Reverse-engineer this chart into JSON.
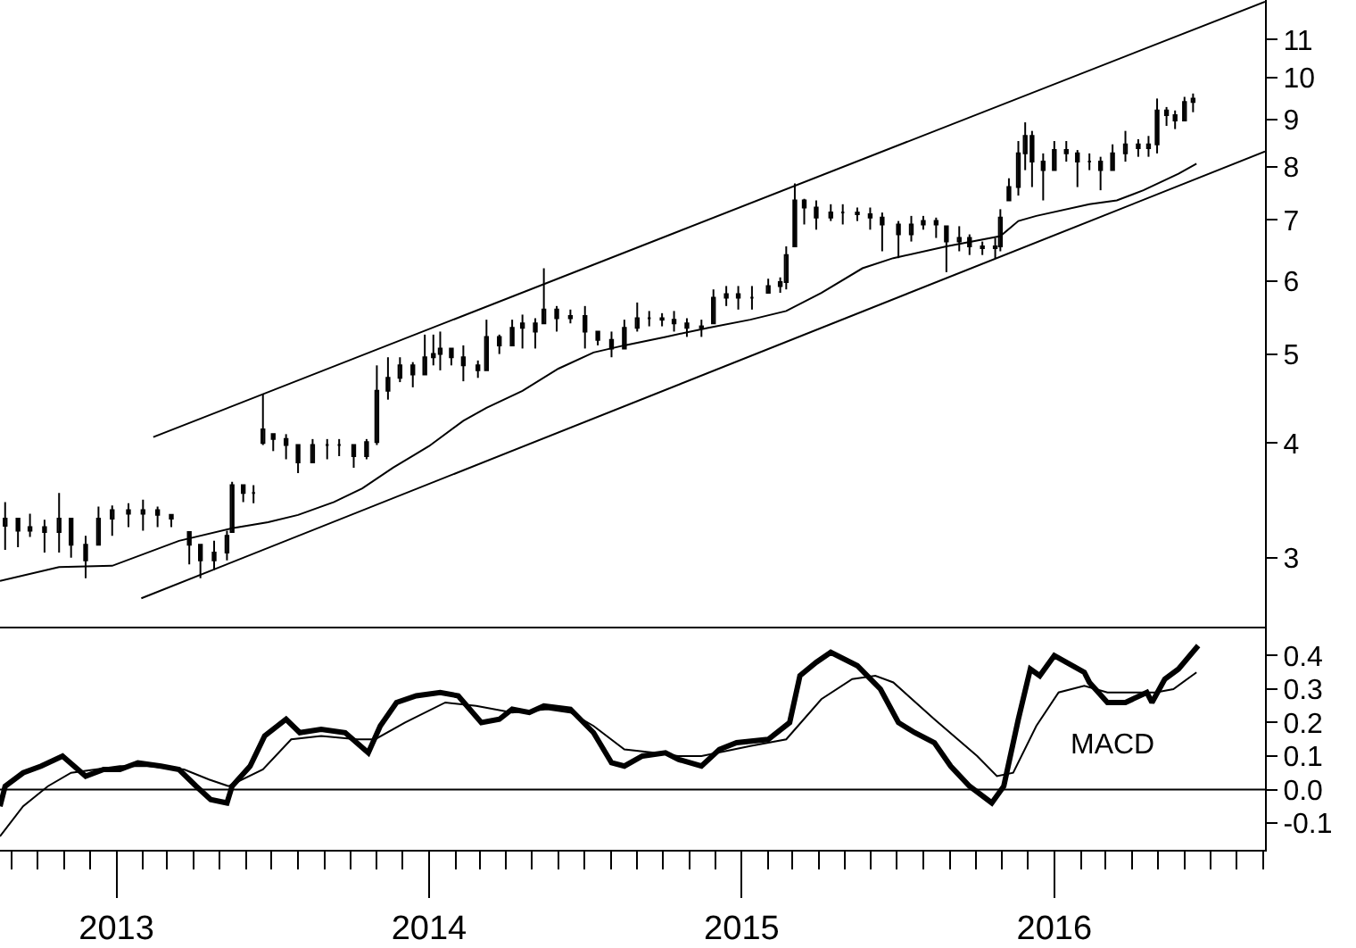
{
  "chart_data": [
    {
      "type": "candlestick",
      "color": "#000000",
      "log": "y",
      "tick_labels": "y",
      "xlim": [
        "2012-08-18",
        "2016-09-03"
      ],
      "ylim": [
        2.51,
        12.15
      ],
      "yticks": [
        3,
        4,
        5,
        6,
        7,
        8,
        9,
        10,
        11
      ],
      "x": [
        "2012-08-24",
        "2012-09-08",
        "2012-09-22",
        "2012-10-09",
        "2012-10-26",
        "2012-11-09",
        "2012-11-26",
        "2012-12-11",
        "2012-12-27",
        "2013-01-15",
        "2013-02-01",
        "2013-02-18",
        "2013-03-06",
        "2013-03-27",
        "2013-04-09",
        "2013-04-25",
        "2013-05-10",
        "2013-05-16",
        "2013-05-29",
        "2013-06-10",
        "2013-06-21",
        "2013-07-03",
        "2013-07-18",
        "2013-08-01",
        "2013-08-18",
        "2013-09-04",
        "2013-09-18",
        "2013-10-05",
        "2013-10-20",
        "2013-11-01",
        "2013-11-14",
        "2013-11-28",
        "2013-12-13",
        "2013-12-27",
        "2014-01-06",
        "2014-01-14",
        "2014-01-27",
        "2014-02-10",
        "2014-02-27",
        "2014-03-09",
        "2014-03-24",
        "2014-04-08",
        "2014-04-20",
        "2014-05-05",
        "2014-05-15",
        "2014-05-30",
        "2014-06-15",
        "2014-07-02",
        "2014-07-17",
        "2014-08-02",
        "2014-08-17",
        "2014-09-01",
        "2014-09-15",
        "2014-09-30",
        "2014-10-14",
        "2014-10-29",
        "2014-11-15",
        "2014-11-29",
        "2014-12-14",
        "2014-12-28",
        "2015-01-13",
        "2015-02-01",
        "2015-02-15",
        "2015-02-22",
        "2015-03-04",
        "2015-03-15",
        "2015-03-29",
        "2015-04-15",
        "2015-04-29",
        "2015-05-16",
        "2015-05-31",
        "2015-06-14",
        "2015-07-03",
        "2015-07-18",
        "2015-08-01",
        "2015-08-16",
        "2015-08-28",
        "2015-09-12",
        "2015-09-24",
        "2015-10-09",
        "2015-10-24",
        "2015-10-30",
        "2015-11-09",
        "2015-11-20",
        "2015-11-28",
        "2015-12-06",
        "2015-12-19",
        "2016-01-01",
        "2016-01-15",
        "2016-01-28",
        "2016-02-11",
        "2016-02-24",
        "2016-03-09",
        "2016-03-24",
        "2016-04-08",
        "2016-04-20",
        "2016-04-30",
        "2016-05-11",
        "2016-05-21",
        "2016-06-01",
        "2016-06-11"
      ],
      "ohlc": [
        [
          3.25,
          3.45,
          3.06,
          3.31
        ],
        [
          3.31,
          3.31,
          3.08,
          3.21
        ],
        [
          3.21,
          3.35,
          3.16,
          3.24
        ],
        [
          3.24,
          3.3,
          3.04,
          3.2
        ],
        [
          3.2,
          3.53,
          3.04,
          3.31
        ],
        [
          3.31,
          3.31,
          3.0,
          3.1
        ],
        [
          3.1,
          3.17,
          2.85,
          2.98
        ],
        [
          3.1,
          3.41,
          3.1,
          3.31
        ],
        [
          3.31,
          3.42,
          3.17,
          3.38
        ],
        [
          3.38,
          3.44,
          3.24,
          3.35
        ],
        [
          3.35,
          3.47,
          3.21,
          3.38
        ],
        [
          3.38,
          3.41,
          3.24,
          3.34
        ],
        [
          3.34,
          3.34,
          3.24,
          3.31
        ],
        [
          3.2,
          3.2,
          2.95,
          3.1
        ],
        [
          3.1,
          3.1,
          2.85,
          2.98
        ],
        [
          2.98,
          3.13,
          2.91,
          3.04
        ],
        [
          3.04,
          3.21,
          2.98,
          3.17
        ],
        [
          3.2,
          3.63,
          3.2,
          3.6
        ],
        [
          3.6,
          3.6,
          3.45,
          3.53
        ],
        [
          3.53,
          3.6,
          3.44,
          3.53
        ],
        [
          4.0,
          4.52,
          3.98,
          4.14
        ],
        [
          4.09,
          4.09,
          3.92,
          4.04
        ],
        [
          4.04,
          4.09,
          3.84,
          3.98
        ],
        [
          3.98,
          3.98,
          3.71,
          3.81
        ],
        [
          3.81,
          4.04,
          3.81,
          3.98
        ],
        [
          3.98,
          4.04,
          3.84,
          3.98
        ],
        [
          3.98,
          4.04,
          3.87,
          3.98
        ],
        [
          3.98,
          3.98,
          3.76,
          3.87
        ],
        [
          3.87,
          4.04,
          3.84,
          4.01
        ],
        [
          4.01,
          4.86,
          3.98,
          4.56
        ],
        [
          4.56,
          4.96,
          4.46,
          4.71
        ],
        [
          4.71,
          4.96,
          4.66,
          4.86
        ],
        [
          4.86,
          4.9,
          4.6,
          4.75
        ],
        [
          4.75,
          5.25,
          4.75,
          4.96
        ],
        [
          4.96,
          5.25,
          4.86,
          5.0
        ],
        [
          5.0,
          5.29,
          4.8,
          5.07
        ],
        [
          5.07,
          5.07,
          4.86,
          4.96
        ],
        [
          4.96,
          5.11,
          4.67,
          4.86
        ],
        [
          4.86,
          4.92,
          4.71,
          4.8
        ],
        [
          4.8,
          5.45,
          4.8,
          5.22
        ],
        [
          5.22,
          5.25,
          5.0,
          5.11
        ],
        [
          5.11,
          5.45,
          5.11,
          5.34
        ],
        [
          5.34,
          5.52,
          5.07,
          5.4
        ],
        [
          5.4,
          5.47,
          5.07,
          5.29
        ],
        [
          5.4,
          6.2,
          5.4,
          5.59
        ],
        [
          5.59,
          5.64,
          5.29,
          5.47
        ],
        [
          5.47,
          5.59,
          5.4,
          5.5
        ],
        [
          5.5,
          5.64,
          5.07,
          5.29
        ],
        [
          5.29,
          5.29,
          5.11,
          5.18
        ],
        [
          5.18,
          5.29,
          4.96,
          5.07
        ],
        [
          5.07,
          5.45,
          5.07,
          5.34
        ],
        [
          5.34,
          5.69,
          5.29,
          5.47
        ],
        [
          5.47,
          5.57,
          5.36,
          5.47
        ],
        [
          5.47,
          5.54,
          5.36,
          5.45
        ],
        [
          5.45,
          5.57,
          5.29,
          5.4
        ],
        [
          5.4,
          5.47,
          5.22,
          5.34
        ],
        [
          5.34,
          5.45,
          5.22,
          5.36
        ],
        [
          5.4,
          5.88,
          5.4,
          5.76
        ],
        [
          5.76,
          5.93,
          5.64,
          5.81
        ],
        [
          5.81,
          5.93,
          5.59,
          5.76
        ],
        [
          5.76,
          5.93,
          5.59,
          5.76
        ],
        [
          5.83,
          6.04,
          5.83,
          5.93
        ],
        [
          5.93,
          6.06,
          5.83,
          5.99
        ],
        [
          5.99,
          6.55,
          5.88,
          6.41
        ],
        [
          6.55,
          7.67,
          6.55,
          7.35
        ],
        [
          7.35,
          7.38,
          6.92,
          7.22
        ],
        [
          7.22,
          7.35,
          6.83,
          7.04
        ],
        [
          7.04,
          7.28,
          6.98,
          7.13
        ],
        [
          7.13,
          7.28,
          6.92,
          7.13
        ],
        [
          7.13,
          7.22,
          6.98,
          7.1
        ],
        [
          7.1,
          7.22,
          6.83,
          7.04
        ],
        [
          7.04,
          7.13,
          6.47,
          6.92
        ],
        [
          6.92,
          6.98,
          6.36,
          6.75
        ],
        [
          6.75,
          7.07,
          6.63,
          6.92
        ],
        [
          6.92,
          7.07,
          6.83,
          6.98
        ],
        [
          6.98,
          7.04,
          6.69,
          6.92
        ],
        [
          6.89,
          6.89,
          6.14,
          6.63
        ],
        [
          6.63,
          6.89,
          6.47,
          6.69
        ],
        [
          6.69,
          6.75,
          6.41,
          6.55
        ],
        [
          6.55,
          6.63,
          6.41,
          6.52
        ],
        [
          6.52,
          6.69,
          6.36,
          6.55
        ],
        [
          6.55,
          7.19,
          6.47,
          7.04
        ],
        [
          7.35,
          7.77,
          7.35,
          7.6
        ],
        [
          7.6,
          8.53,
          7.44,
          8.27
        ],
        [
          8.27,
          8.94,
          7.93,
          8.64
        ],
        [
          8.64,
          8.75,
          7.6,
          8.1
        ],
        [
          8.1,
          8.27,
          7.35,
          7.93
        ],
        [
          7.93,
          8.53,
          7.93,
          8.34
        ],
        [
          8.34,
          8.53,
          8.1,
          8.27
        ],
        [
          8.27,
          8.34,
          7.6,
          8.1
        ],
        [
          8.1,
          8.27,
          7.93,
          8.1
        ],
        [
          8.1,
          8.2,
          7.54,
          7.93
        ],
        [
          7.93,
          8.46,
          7.93,
          8.27
        ],
        [
          8.27,
          8.75,
          8.1,
          8.46
        ],
        [
          8.46,
          8.57,
          8.2,
          8.38
        ],
        [
          8.38,
          8.64,
          8.2,
          8.46
        ],
        [
          8.46,
          9.49,
          8.27,
          9.21
        ],
        [
          9.21,
          9.29,
          8.86,
          9.1
        ],
        [
          9.1,
          9.21,
          8.79,
          8.98
        ],
        [
          8.98,
          9.53,
          8.98,
          9.41
        ],
        [
          9.41,
          9.61,
          9.17,
          9.49
        ]
      ],
      "series": [
        {
          "type": "line",
          "color": "#000000",
          "x": [
            "2012-08-18",
            "2012-10-26",
            "2012-12-27",
            "2013-03-15",
            "2013-05-16",
            "2013-06-27",
            "2013-08-01",
            "2013-09-12",
            "2013-10-15",
            "2013-11-20",
            "2014-01-01",
            "2014-02-10",
            "2014-03-09",
            "2014-04-20",
            "2014-06-01",
            "2014-07-12",
            "2014-08-17",
            "2014-10-04",
            "2014-11-23",
            "2015-01-11",
            "2015-02-22",
            "2015-04-04",
            "2015-05-22",
            "2015-06-27",
            "2015-08-28",
            "2015-10-30",
            "2015-11-20",
            "2015-12-11",
            "2016-02-11",
            "2016-03-14",
            "2016-04-14",
            "2016-05-25",
            "2016-06-15"
          ],
          "values": [
            2.83,
            2.93,
            2.94,
            3.13,
            3.23,
            3.28,
            3.34,
            3.45,
            3.57,
            3.76,
            3.97,
            4.23,
            4.37,
            4.56,
            4.82,
            5.02,
            5.11,
            5.22,
            5.34,
            5.45,
            5.57,
            5.83,
            6.2,
            6.36,
            6.55,
            6.72,
            6.98,
            7.07,
            7.28,
            7.35,
            7.54,
            7.86,
            8.06
          ]
        },
        {
          "type": "line",
          "color": "#000000",
          "x": [
            "2013-02-13",
            "2016-09-03"
          ],
          "values": [
            4.06,
            12.1
          ]
        },
        {
          "type": "line",
          "color": "#000000",
          "x": [
            "2013-01-30",
            "2016-09-03"
          ],
          "values": [
            2.71,
            8.31
          ]
        }
      ]
    },
    {
      "type": "line",
      "xlim": [
        "2012-08-18",
        "2016-09-03"
      ],
      "ylim": [
        -0.18,
        0.48
      ],
      "xticks": [
        {
          "value": "2013-01-01",
          "label": "2013"
        },
        {
          "value": "2014-01-01",
          "label": "2014"
        },
        {
          "value": "2015-01-01",
          "label": "2015"
        },
        {
          "value": "2016-01-01",
          "label": "2016"
        }
      ],
      "yticks": [
        -0.1,
        {
          "value": 0,
          "label": "0.0"
        },
        0.1,
        0.2,
        0.3,
        0.4
      ],
      "ref_lines": [
        {
          "axis": "y",
          "value": 0,
          "color": "#000000"
        }
      ],
      "annotations": [
        "MACD"
      ],
      "series": [
        {
          "color": "#000000",
          "x": [
            "2012-08-18",
            "2012-08-24",
            "2012-09-14",
            "2012-10-05",
            "2012-10-30",
            "2012-11-26",
            "2012-12-17",
            "2013-01-05",
            "2013-01-26",
            "2013-02-22",
            "2013-03-15",
            "2013-04-04",
            "2013-04-21",
            "2013-05-10",
            "2013-05-16",
            "2013-06-06",
            "2013-06-23",
            "2013-07-18",
            "2013-08-03",
            "2013-08-28",
            "2013-09-25",
            "2013-10-22",
            "2013-11-05",
            "2013-11-24",
            "2013-12-17",
            "2014-01-14",
            "2014-02-04",
            "2014-03-03",
            "2014-03-24",
            "2014-04-08",
            "2014-04-28",
            "2014-05-15",
            "2014-06-15",
            "2014-07-12",
            "2014-08-02",
            "2014-08-17",
            "2014-09-07",
            "2014-10-04",
            "2014-10-19",
            "2014-11-15",
            "2014-12-06",
            "2014-12-26",
            "2015-02-01",
            "2015-02-26",
            "2015-03-10",
            "2015-03-29",
            "2015-04-15",
            "2015-05-16",
            "2015-06-12",
            "2015-07-03",
            "2015-07-22",
            "2015-08-14",
            "2015-09-02",
            "2015-09-24",
            "2015-10-20",
            "2015-11-03",
            "2015-11-20",
            "2015-12-04",
            "2015-12-15",
            "2016-01-01",
            "2016-02-05",
            "2016-02-11",
            "2016-03-03",
            "2016-03-24",
            "2016-04-18",
            "2016-04-24",
            "2016-05-09",
            "2016-05-25",
            "2016-06-17"
          ],
          "values": [
            -0.05,
            0.01,
            0.05,
            0.07,
            0.1,
            0.04,
            0.06,
            0.06,
            0.08,
            0.07,
            0.06,
            0.01,
            -0.03,
            -0.04,
            0.01,
            0.07,
            0.16,
            0.21,
            0.17,
            0.18,
            0.17,
            0.11,
            0.19,
            0.26,
            0.28,
            0.29,
            0.28,
            0.2,
            0.21,
            0.24,
            0.23,
            0.25,
            0.24,
            0.17,
            0.08,
            0.07,
            0.1,
            0.11,
            0.09,
            0.07,
            0.12,
            0.14,
            0.15,
            0.2,
            0.34,
            0.38,
            0.41,
            0.37,
            0.3,
            0.2,
            0.17,
            0.14,
            0.07,
            0.01,
            -0.04,
            0.01,
            0.21,
            0.36,
            0.34,
            0.4,
            0.35,
            0.32,
            0.26,
            0.26,
            0.29,
            0.26,
            0.33,
            0.36,
            0.43
          ]
        },
        {
          "color": "#000000",
          "x": [
            "2012-08-18",
            "2012-09-14",
            "2012-10-13",
            "2012-11-09",
            "2013-01-05",
            "2013-02-07",
            "2013-03-21",
            "2013-04-19",
            "2013-05-12",
            "2013-06-21",
            "2013-07-24",
            "2013-08-28",
            "2013-10-09",
            "2013-10-30",
            "2013-12-04",
            "2014-01-20",
            "2014-02-25",
            "2014-04-08",
            "2014-05-19",
            "2014-06-15",
            "2014-07-12",
            "2014-08-17",
            "2014-09-21",
            "2014-10-19",
            "2014-11-15",
            "2015-01-11",
            "2015-02-22",
            "2015-04-04",
            "2015-05-10",
            "2015-06-06",
            "2015-06-27",
            "2015-08-14",
            "2015-10-03",
            "2015-10-26",
            "2015-11-14",
            "2015-12-11",
            "2016-01-06",
            "2016-02-05",
            "2016-03-03",
            "2016-03-30",
            "2016-04-28",
            "2016-05-19",
            "2016-06-15"
          ],
          "values": [
            -0.14,
            -0.05,
            0.01,
            0.05,
            0.07,
            0.07,
            0.06,
            0.03,
            0.01,
            0.06,
            0.15,
            0.16,
            0.15,
            0.15,
            0.2,
            0.26,
            0.25,
            0.23,
            0.24,
            0.23,
            0.19,
            0.12,
            0.11,
            0.1,
            0.1,
            0.13,
            0.15,
            0.27,
            0.33,
            0.34,
            0.32,
            0.21,
            0.1,
            0.04,
            0.05,
            0.19,
            0.29,
            0.31,
            0.29,
            0.29,
            0.29,
            0.3,
            0.35
          ]
        }
      ]
    }
  ]
}
